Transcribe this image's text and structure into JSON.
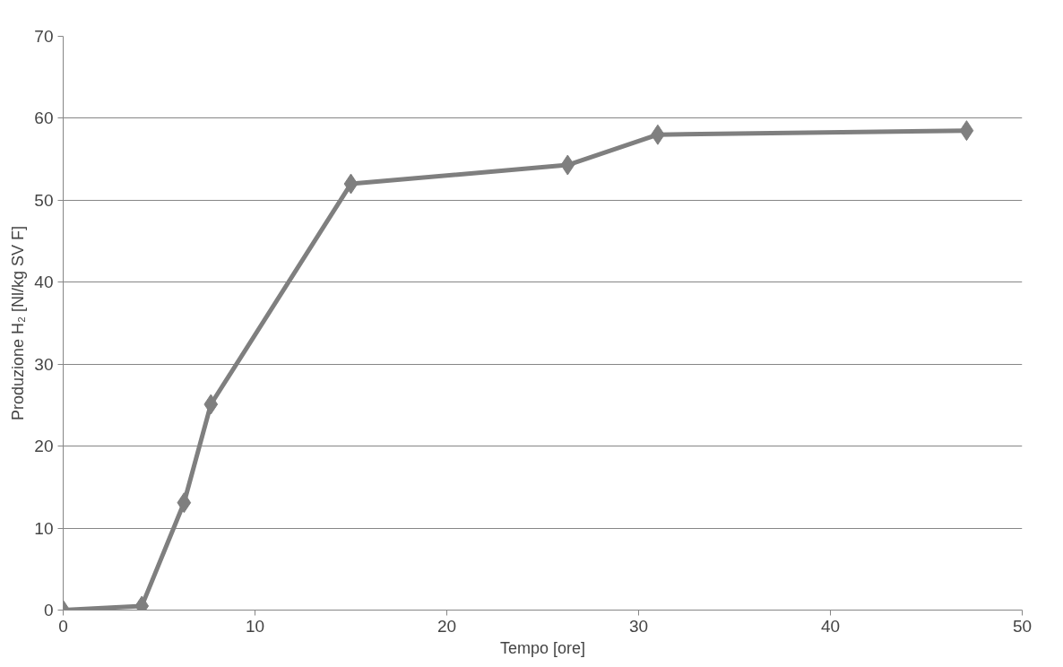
{
  "chart_data": {
    "type": "line",
    "xlabel": "Tempo [ore]",
    "ylabel": "Produzione H₂ [Nl/kg SV F]",
    "x": [
      0,
      4.1,
      6.3,
      7.7,
      15.0,
      26.3,
      31.0,
      47.1
    ],
    "series": [
      {
        "color": "#7f7f7f",
        "values": [
          0,
          0.5,
          13.1,
          25.1,
          52.0,
          54.3,
          58.0,
          58.5
        ]
      }
    ],
    "xlim": [
      0,
      50
    ],
    "xticks": [
      0,
      10,
      20,
      30,
      40,
      50
    ],
    "ylim": [
      0,
      70
    ],
    "yticks": [
      0,
      10,
      20,
      30,
      40,
      50,
      60,
      70
    ],
    "grid": "y",
    "marker": "diamond",
    "line_style": "solid"
  }
}
